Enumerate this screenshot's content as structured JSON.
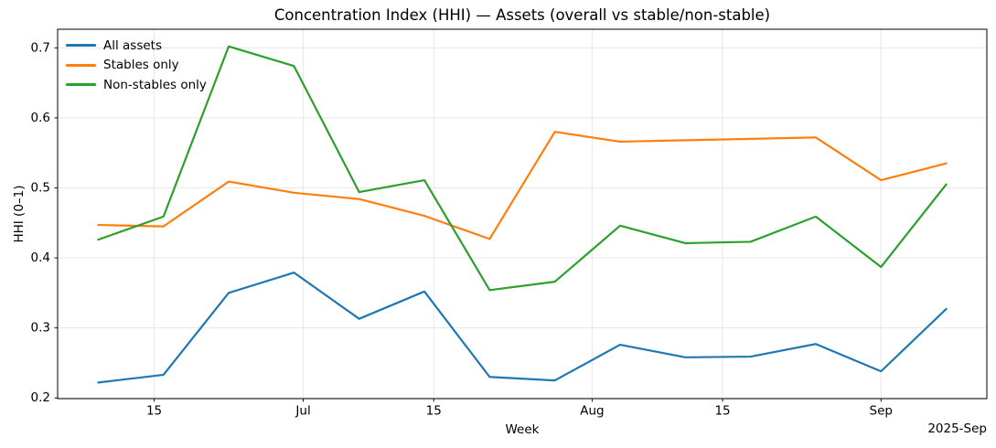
{
  "chart_data": {
    "type": "line",
    "title": "Concentration Index (HHI) — Assets (overall vs stable/non-stable)",
    "xlabel": "Week",
    "ylabel": "HHI (0–1)",
    "x_offset_label": "2025-Sep",
    "x": [
      "2025-06-09",
      "2025-06-16",
      "2025-06-23",
      "2025-06-30",
      "2025-07-07",
      "2025-07-14",
      "2025-07-21",
      "2025-07-28",
      "2025-08-04",
      "2025-08-11",
      "2025-08-18",
      "2025-08-25",
      "2025-09-01",
      "2025-09-08"
    ],
    "series": [
      {
        "name": "All assets",
        "color": "#1f77b4",
        "values": [
          0.222,
          0.233,
          0.35,
          0.379,
          0.313,
          0.352,
          0.23,
          0.225,
          0.276,
          0.258,
          0.259,
          0.277,
          0.238,
          0.327
        ]
      },
      {
        "name": "Stables only",
        "color": "#ff7f0e",
        "values": [
          0.447,
          0.445,
          0.509,
          0.493,
          0.484,
          0.46,
          0.427,
          0.58,
          0.566,
          0.568,
          0.57,
          0.572,
          0.511,
          0.535
        ]
      },
      {
        "name": "Non-stables only",
        "color": "#2ca02c",
        "values": [
          0.426,
          0.459,
          0.702,
          0.674,
          0.494,
          0.511,
          0.354,
          0.366,
          0.446,
          0.421,
          0.423,
          0.459,
          0.387,
          0.505
        ]
      }
    ],
    "y_ticks": [
      0.2,
      0.3,
      0.4,
      0.5,
      0.6,
      0.7
    ],
    "x_ticks": [
      {
        "label": "15",
        "date": "2025-06-15"
      },
      {
        "label": "Jul",
        "date": "2025-07-01"
      },
      {
        "label": "15",
        "date": "2025-07-15"
      },
      {
        "label": "Aug",
        "date": "2025-08-01"
      },
      {
        "label": "15",
        "date": "2025-08-15"
      },
      {
        "label": "Sep",
        "date": "2025-09-01"
      }
    ],
    "ylim": [
      0.199,
      0.7265
    ],
    "grid": true,
    "legend_position": "upper-left",
    "colors": {
      "grid": "#e7e7e7",
      "spine": "#000000",
      "background": "#ffffff"
    }
  }
}
